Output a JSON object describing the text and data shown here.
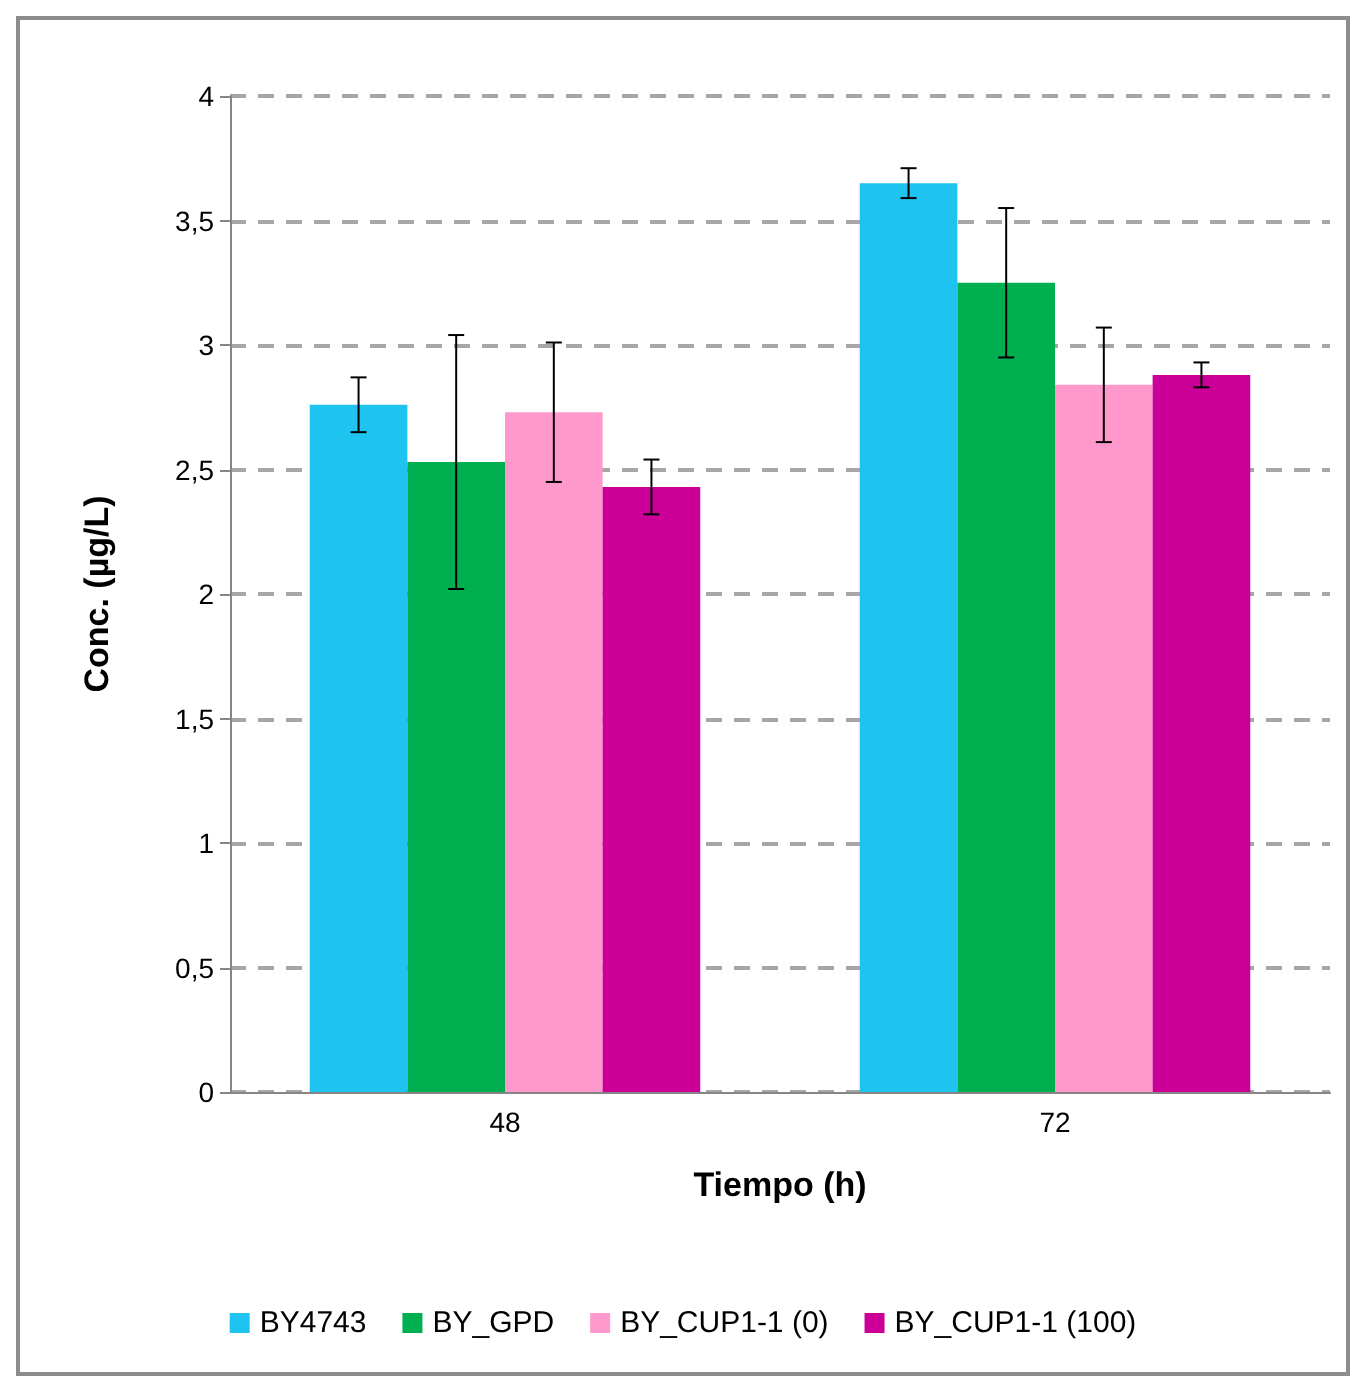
{
  "chart_data": {
    "type": "bar",
    "xlabel": "Tiempo (h)",
    "ylabel": "Conc. (µg/L)",
    "categories": [
      "48",
      "72"
    ],
    "series": [
      {
        "name": "BY4743",
        "color": "#1fc3f0",
        "values": [
          2.76,
          3.65
        ],
        "errors": [
          0.11,
          0.06
        ]
      },
      {
        "name": "BY_GPD",
        "color": "#00b050",
        "values": [
          2.53,
          3.25
        ],
        "errors": [
          0.51,
          0.3
        ]
      },
      {
        "name": "BY_CUP1-1 (0)",
        "color": "#ff99cc",
        "values": [
          2.73,
          2.84
        ],
        "errors": [
          0.28,
          0.23
        ]
      },
      {
        "name": "BY_CUP1-1 (100)",
        "color": "#cc0099",
        "values": [
          2.43,
          2.88
        ],
        "errors": [
          0.11,
          0.05
        ]
      }
    ],
    "ylim": [
      0,
      4
    ],
    "yticks": [
      0,
      {
        "value": 0.5,
        "label": "0,5"
      },
      1,
      {
        "value": 1.5,
        "label": "1,5"
      },
      2,
      {
        "value": 2.5,
        "label": "2,5"
      },
      3,
      {
        "value": 3.5,
        "label": "3,5"
      },
      4
    ],
    "grid": "y",
    "legend": "bottom"
  }
}
